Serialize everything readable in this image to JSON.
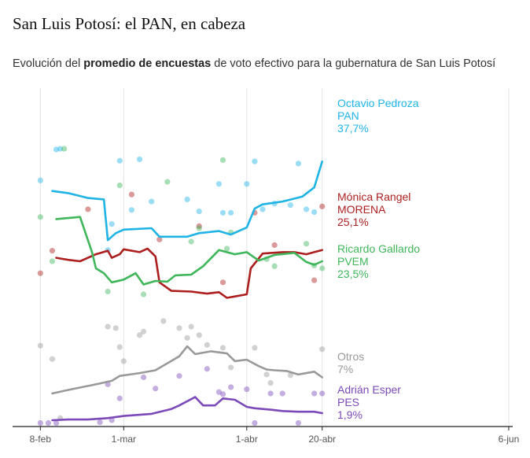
{
  "page": {
    "title": "San Luis Potosí: el PAN, en cabeza",
    "subtitle_pre": "Evolución del ",
    "subtitle_bold": "promedio de encuestas",
    "subtitle_post": " de voto efectivo para la gubernatura de San Luis Potosí"
  },
  "chart_data": {
    "type": "line",
    "title": "San Luis Potosí: el PAN, en cabeza",
    "subtitle": "Evolución del promedio de encuestas de voto efectivo para la gubernatura de San Luis Potosí",
    "x_ticks": [
      {
        "date": "2021-02-08",
        "label": "8-feb"
      },
      {
        "date": "2021-03-01",
        "label": "1-mar"
      },
      {
        "date": "2021-04-01",
        "label": "1-abr"
      },
      {
        "date": "2021-04-20",
        "label": "20-abr"
      },
      {
        "date": "2021-06-06",
        "label": "6-jun"
      }
    ],
    "x_range": [
      "2021-02-01",
      "2021-06-07"
    ],
    "ylim": [
      0,
      46
    ],
    "grid": "vertical",
    "legend": "end-labels-right",
    "series": [
      {
        "name": "Octavio Pedroza",
        "party": "PAN",
        "value_label": "37,7%",
        "color": "#1fb4e6",
        "line": [
          [
            "2021-02-11",
            33.5
          ],
          [
            "2021-02-15",
            33.2
          ],
          [
            "2021-02-20",
            32.5
          ],
          [
            "2021-02-24",
            32.3
          ],
          [
            "2021-02-25",
            26.5
          ],
          [
            "2021-02-27",
            27.5
          ],
          [
            "2021-03-01",
            28.0
          ],
          [
            "2021-03-08",
            28.2
          ],
          [
            "2021-03-10",
            27.0
          ],
          [
            "2021-03-17",
            27.0
          ],
          [
            "2021-03-20",
            27.5
          ],
          [
            "2021-03-25",
            27.8
          ],
          [
            "2021-03-28",
            27.3
          ],
          [
            "2021-04-01",
            28.3
          ],
          [
            "2021-04-03",
            31.0
          ],
          [
            "2021-04-05",
            31.6
          ],
          [
            "2021-04-10",
            32.0
          ],
          [
            "2021-04-15",
            32.7
          ],
          [
            "2021-04-18",
            34.0
          ],
          [
            "2021-04-20",
            37.7
          ]
        ],
        "dots": [
          [
            "2021-02-08",
            35.0
          ],
          [
            "2021-02-12",
            39.4
          ],
          [
            "2021-02-13",
            39.5
          ],
          [
            "2021-02-25",
            25.1
          ],
          [
            "2021-02-26",
            28.8
          ],
          [
            "2021-02-28",
            37.8
          ],
          [
            "2021-03-03",
            30.8
          ],
          [
            "2021-03-05",
            38.0
          ],
          [
            "2021-03-08",
            32.0
          ],
          [
            "2021-03-17",
            32.3
          ],
          [
            "2021-03-20",
            30.6
          ],
          [
            "2021-03-25",
            34.5
          ],
          [
            "2021-03-26",
            30.4
          ],
          [
            "2021-03-28",
            30.4
          ],
          [
            "2021-04-01",
            34.5
          ],
          [
            "2021-04-03",
            37.7
          ],
          [
            "2021-04-05",
            30.9
          ],
          [
            "2021-04-08",
            31.7
          ],
          [
            "2021-04-12",
            31.5
          ],
          [
            "2021-04-14",
            37.4
          ],
          [
            "2021-04-16",
            30.9
          ],
          [
            "2021-04-18",
            30.5
          ]
        ]
      },
      {
        "name": "Mónica Rangel",
        "party": "MORENA",
        "value_label": "25,1%",
        "color": "#ad1f1f",
        "line": [
          [
            "2021-02-12",
            24.0
          ],
          [
            "2021-02-15",
            23.7
          ],
          [
            "2021-02-18",
            23.5
          ],
          [
            "2021-02-22",
            24.5
          ],
          [
            "2021-02-25",
            25.0
          ],
          [
            "2021-02-26",
            24.0
          ],
          [
            "2021-02-28",
            24.5
          ],
          [
            "2021-03-01",
            25.2
          ],
          [
            "2021-03-05",
            24.8
          ],
          [
            "2021-03-07",
            25.3
          ],
          [
            "2021-03-09",
            24.2
          ],
          [
            "2021-03-10",
            20.5
          ],
          [
            "2021-03-13",
            19.3
          ],
          [
            "2021-03-18",
            19.2
          ],
          [
            "2021-03-22",
            18.9
          ],
          [
            "2021-03-25",
            19.1
          ],
          [
            "2021-03-27",
            18.3
          ],
          [
            "2021-03-29",
            18.5
          ],
          [
            "2021-04-01",
            18.8
          ],
          [
            "2021-04-02",
            22.5
          ],
          [
            "2021-04-05",
            24.6
          ],
          [
            "2021-04-10",
            24.8
          ],
          [
            "2021-04-13",
            24.8
          ],
          [
            "2021-04-16",
            24.5
          ],
          [
            "2021-04-18",
            24.8
          ],
          [
            "2021-04-20",
            25.1
          ]
        ],
        "dots": [
          [
            "2021-02-08",
            21.8
          ],
          [
            "2021-02-11",
            25.0
          ],
          [
            "2021-02-20",
            30.9
          ],
          [
            "2021-03-03",
            33.0
          ],
          [
            "2021-03-10",
            26.6
          ],
          [
            "2021-03-20",
            28.5
          ],
          [
            "2021-03-26",
            20.5
          ],
          [
            "2021-04-03",
            30.4
          ],
          [
            "2021-04-08",
            25.8
          ],
          [
            "2021-04-18",
            20.8
          ],
          [
            "2021-04-20",
            31.3
          ]
        ]
      },
      {
        "name": "Ricardo Gallardo",
        "party": "PVEM",
        "value_label": "23,5%",
        "color": "#3fb65a",
        "line": [
          [
            "2021-02-12",
            29.5
          ],
          [
            "2021-02-18",
            29.8
          ],
          [
            "2021-02-21",
            24.8
          ],
          [
            "2021-02-22",
            22.5
          ],
          [
            "2021-02-24",
            21.8
          ],
          [
            "2021-02-26",
            20.5
          ],
          [
            "2021-03-01",
            20.9
          ],
          [
            "2021-03-04",
            21.8
          ],
          [
            "2021-03-06",
            20.2
          ],
          [
            "2021-03-09",
            20.7
          ],
          [
            "2021-03-12",
            20.6
          ],
          [
            "2021-03-14",
            21.5
          ],
          [
            "2021-03-18",
            21.6
          ],
          [
            "2021-03-21",
            22.8
          ],
          [
            "2021-03-25",
            25.1
          ],
          [
            "2021-03-29",
            24.5
          ],
          [
            "2021-04-01",
            24.8
          ],
          [
            "2021-04-04",
            23.6
          ],
          [
            "2021-04-08",
            24.4
          ],
          [
            "2021-04-13",
            24.7
          ],
          [
            "2021-04-16",
            23.4
          ],
          [
            "2021-04-18",
            23.0
          ],
          [
            "2021-04-20",
            23.5
          ]
        ],
        "dots": [
          [
            "2021-02-08",
            29.8
          ],
          [
            "2021-02-11",
            23.5
          ],
          [
            "2021-02-14",
            39.5
          ],
          [
            "2021-02-25",
            19.2
          ],
          [
            "2021-02-28",
            34.3
          ],
          [
            "2021-03-06",
            18.8
          ],
          [
            "2021-03-12",
            34.8
          ],
          [
            "2021-03-18",
            26.3
          ],
          [
            "2021-03-20",
            28.2
          ],
          [
            "2021-03-26",
            37.9
          ],
          [
            "2021-03-27",
            25.3
          ],
          [
            "2021-03-28",
            27.6
          ],
          [
            "2021-04-06",
            23.8
          ],
          [
            "2021-04-08",
            22.8
          ],
          [
            "2021-04-16",
            26.0
          ],
          [
            "2021-04-18",
            22.9
          ],
          [
            "2021-04-20",
            22.5
          ]
        ]
      },
      {
        "name": "Otros",
        "party": "",
        "value_label": "7%",
        "color": "#999999",
        "line": [
          [
            "2021-02-11",
            4.7
          ],
          [
            "2021-02-15",
            5.2
          ],
          [
            "2021-02-22",
            6.0
          ],
          [
            "2021-02-26",
            6.5
          ],
          [
            "2021-02-28",
            7.2
          ],
          [
            "2021-03-05",
            7.6
          ],
          [
            "2021-03-09",
            8.0
          ],
          [
            "2021-03-15",
            10.0
          ],
          [
            "2021-03-17",
            11.4
          ],
          [
            "2021-03-19",
            10.3
          ],
          [
            "2021-03-23",
            10.7
          ],
          [
            "2021-03-27",
            10.4
          ],
          [
            "2021-03-29",
            9.3
          ],
          [
            "2021-04-01",
            9.5
          ],
          [
            "2021-04-04",
            8.6
          ],
          [
            "2021-04-06",
            8.1
          ],
          [
            "2021-04-08",
            8.0
          ],
          [
            "2021-04-11",
            7.9
          ],
          [
            "2021-04-14",
            7.4
          ],
          [
            "2021-04-18",
            7.8
          ],
          [
            "2021-04-20",
            7.0
          ]
        ],
        "dots": [
          [
            "2021-02-08",
            11.5
          ],
          [
            "2021-02-11",
            9.6
          ],
          [
            "2021-02-13",
            1.2
          ],
          [
            "2021-02-25",
            14.2
          ],
          [
            "2021-02-27",
            14.0
          ],
          [
            "2021-02-28",
            11.3
          ],
          [
            "2021-03-01",
            9.3
          ],
          [
            "2021-03-05",
            13.0
          ],
          [
            "2021-03-06",
            13.5
          ],
          [
            "2021-03-11",
            15.0
          ],
          [
            "2021-03-15",
            14.0
          ],
          [
            "2021-03-17",
            12.6
          ],
          [
            "2021-03-18",
            14.2
          ],
          [
            "2021-03-20",
            13.0
          ],
          [
            "2021-03-22",
            11.6
          ],
          [
            "2021-03-26",
            11.2
          ],
          [
            "2021-03-28",
            8.4
          ],
          [
            "2021-04-03",
            11.2
          ],
          [
            "2021-04-06",
            7.4
          ],
          [
            "2021-04-07",
            6.2
          ],
          [
            "2021-04-12",
            7.3
          ],
          [
            "2021-04-20",
            11.0
          ]
        ]
      },
      {
        "name": "Adrián Esper",
        "party": "PES",
        "value_label": "1,9%",
        "color": "#7c4ab8",
        "line": [
          [
            "2021-02-11",
            0.9
          ],
          [
            "2021-02-15",
            1.0
          ],
          [
            "2021-02-20",
            1.0
          ],
          [
            "2021-02-25",
            1.2
          ],
          [
            "2021-03-01",
            1.5
          ],
          [
            "2021-03-08",
            1.8
          ],
          [
            "2021-03-13",
            2.5
          ],
          [
            "2021-03-15",
            3.0
          ],
          [
            "2021-03-19",
            4.2
          ],
          [
            "2021-03-21",
            3.0
          ],
          [
            "2021-03-24",
            3.0
          ],
          [
            "2021-03-26",
            4.0
          ],
          [
            "2021-03-29",
            3.8
          ],
          [
            "2021-04-01",
            2.8
          ],
          [
            "2021-04-03",
            2.6
          ],
          [
            "2021-04-07",
            2.4
          ],
          [
            "2021-04-10",
            2.2
          ],
          [
            "2021-04-14",
            2.1
          ],
          [
            "2021-04-18",
            2.1
          ],
          [
            "2021-04-20",
            1.9
          ]
        ],
        "dots": [
          [
            "2021-02-08",
            0.5
          ],
          [
            "2021-02-10",
            0.5
          ],
          [
            "2021-02-12",
            0.5
          ],
          [
            "2021-02-23",
            0.6
          ],
          [
            "2021-02-25",
            6.0
          ],
          [
            "2021-02-26",
            0.9
          ],
          [
            "2021-02-28",
            4.0
          ],
          [
            "2021-03-06",
            7.0
          ],
          [
            "2021-03-09",
            5.4
          ],
          [
            "2021-03-15",
            7.2
          ],
          [
            "2021-03-22",
            8.2
          ],
          [
            "2021-03-25",
            4.9
          ],
          [
            "2021-03-26",
            4.6
          ],
          [
            "2021-03-28",
            5.6
          ],
          [
            "2021-04-01",
            5.3
          ],
          [
            "2021-04-03",
            0.5
          ],
          [
            "2021-04-07",
            4.7
          ],
          [
            "2021-04-10",
            4.7
          ],
          [
            "2021-04-14",
            0.5
          ],
          [
            "2021-04-18",
            4.7
          ],
          [
            "2021-04-20",
            4.7
          ]
        ]
      }
    ]
  }
}
